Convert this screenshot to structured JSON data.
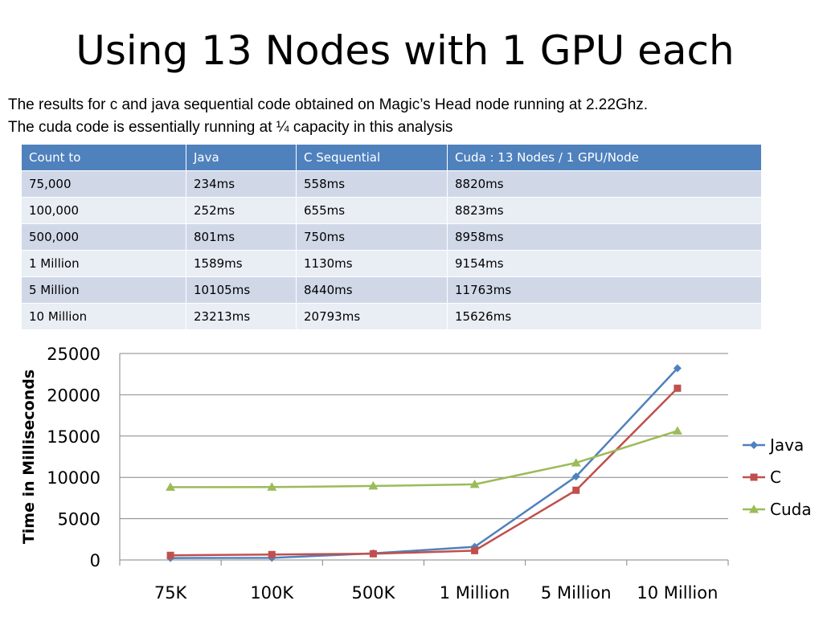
{
  "title": "Using 13 Nodes with 1 GPU each",
  "intro": [
    "The results for c and java sequential code obtained on Magic’s Head node running at 2.22Ghz.",
    "The cuda code is essentially running at ¼ capacity in this analysis"
  ],
  "table": {
    "headers": [
      "Count to",
      "Java",
      "C Sequential",
      "Cuda  : 13 Nodes / 1 GPU/Node"
    ],
    "rows": [
      [
        "75,000",
        "234ms",
        "558ms",
        "8820ms"
      ],
      [
        "100,000",
        "252ms",
        "655ms",
        "8823ms"
      ],
      [
        "500,000",
        "801ms",
        "750ms",
        "8958ms"
      ],
      [
        "1 Million",
        "1589ms",
        "1130ms",
        "9154ms"
      ],
      [
        "5 Million",
        "10105ms",
        "8440ms",
        "11763ms"
      ],
      [
        "10 Million",
        "23213ms",
        "20793ms",
        "15626ms"
      ]
    ],
    "header_color": "#4f81bd",
    "row_colors": [
      "#d0d8e8",
      "#e9edf4"
    ]
  },
  "chart_data": {
    "type": "line",
    "title": "",
    "xlabel": "",
    "ylabel": "Time in Milliseconds",
    "categories": [
      "75K",
      "100K",
      "500K",
      "1 Million",
      "5 Million",
      "10 Million"
    ],
    "ylim": [
      0,
      25000
    ],
    "yticks": [
      0,
      5000,
      10000,
      15000,
      20000,
      25000
    ],
    "grid": true,
    "legend_position": "right",
    "series": [
      {
        "name": "Java",
        "values": [
          234,
          252,
          801,
          1589,
          10105,
          23213
        ],
        "color": "#4f81bd",
        "marker": "diamond"
      },
      {
        "name": "C",
        "values": [
          558,
          655,
          750,
          1130,
          8440,
          20793
        ],
        "color": "#c0504d",
        "marker": "square"
      },
      {
        "name": "Cuda",
        "values": [
          8820,
          8823,
          8958,
          9154,
          11763,
          15626
        ],
        "color": "#9bbb59",
        "marker": "triangle"
      }
    ]
  }
}
